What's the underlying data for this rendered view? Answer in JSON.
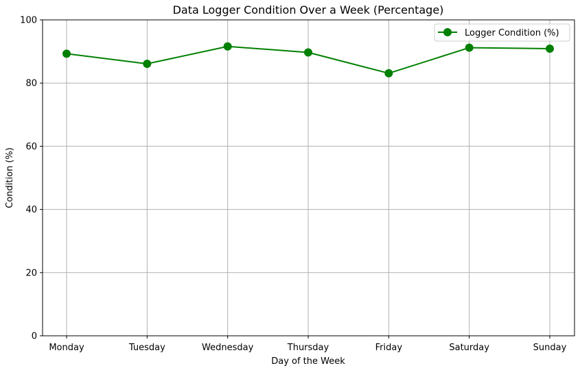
{
  "chart_data": {
    "type": "line",
    "title": "Data Logger Condition Over a Week (Percentage)",
    "xlabel": "Day of the Week",
    "ylabel": "Condition (%)",
    "categories": [
      "Monday",
      "Tuesday",
      "Wednesday",
      "Thursday",
      "Friday",
      "Saturday",
      "Sunday"
    ],
    "ylim": [
      0,
      100
    ],
    "yticks": [
      0,
      20,
      40,
      60,
      80,
      100
    ],
    "ytick_labels": [
      "0",
      "20",
      "40",
      "60",
      "80",
      "100"
    ],
    "grid": true,
    "legend_position": "top-right",
    "series": [
      {
        "name": "Logger Condition (%)",
        "color": "#008000",
        "marker": "circle",
        "values": [
          89.3,
          86.1,
          91.6,
          89.7,
          83.1,
          91.2,
          90.9
        ]
      }
    ]
  }
}
